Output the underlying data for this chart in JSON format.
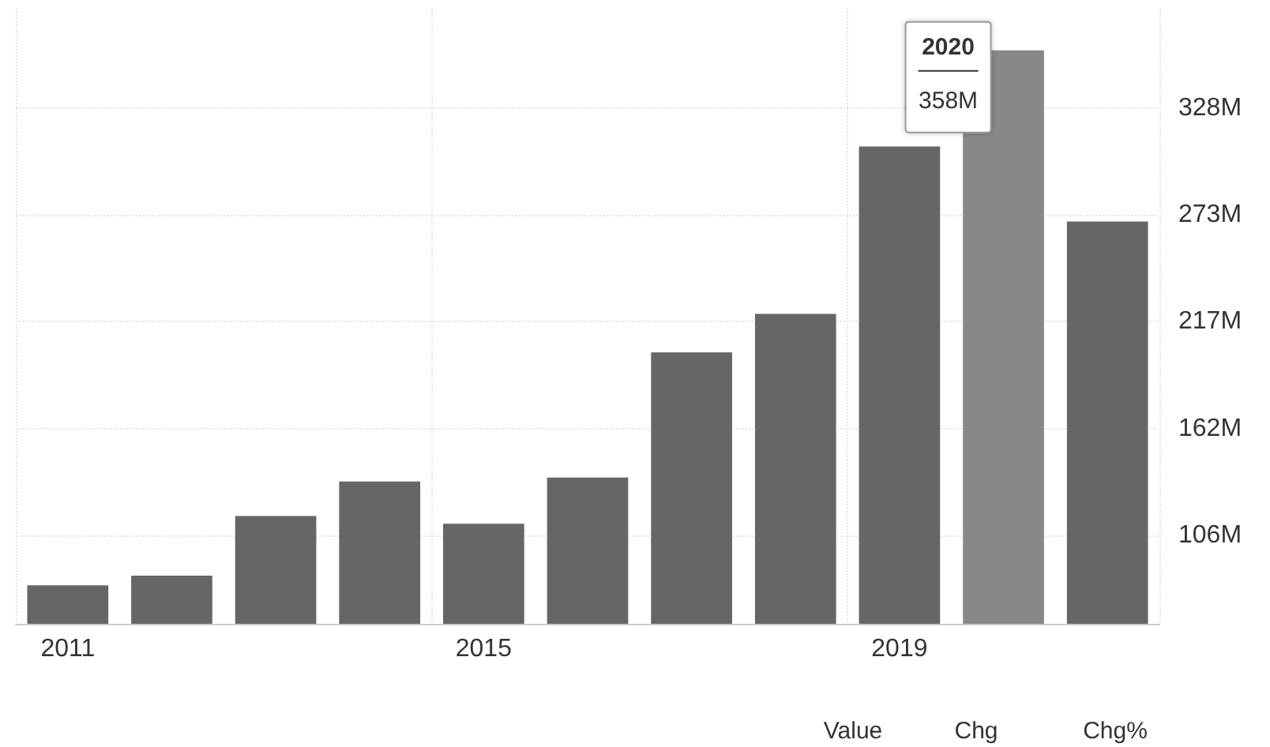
{
  "chart_data": {
    "type": "bar",
    "categories": [
      "2011",
      null,
      null,
      null,
      "2015",
      null,
      null,
      null,
      "2019",
      null,
      null
    ],
    "values": [
      80,
      85,
      116,
      134,
      112,
      136,
      201,
      221,
      308,
      358,
      269
    ],
    "colors": [
      "#666666",
      "#666666",
      "#666666",
      "#666666",
      "#666666",
      "#666666",
      "#666666",
      "#666666",
      "#666666",
      "#888888",
      "#666666"
    ],
    "value_labels": [
      null,
      null,
      null,
      null,
      null,
      null,
      null,
      null,
      null,
      "358M",
      null
    ],
    "ylim": [
      60,
      380
    ],
    "yticks": [
      {
        "value": 106,
        "label": "106M"
      },
      {
        "value": 161.5,
        "label": "162M"
      },
      {
        "value": 217,
        "label": "217M"
      },
      {
        "value": 272.5,
        "label": "273M"
      },
      {
        "value": 328,
        "label": "328M"
      }
    ],
    "grid": true,
    "annotations": [
      "2020",
      "Value",
      "Chg",
      "Chg%"
    ]
  }
}
